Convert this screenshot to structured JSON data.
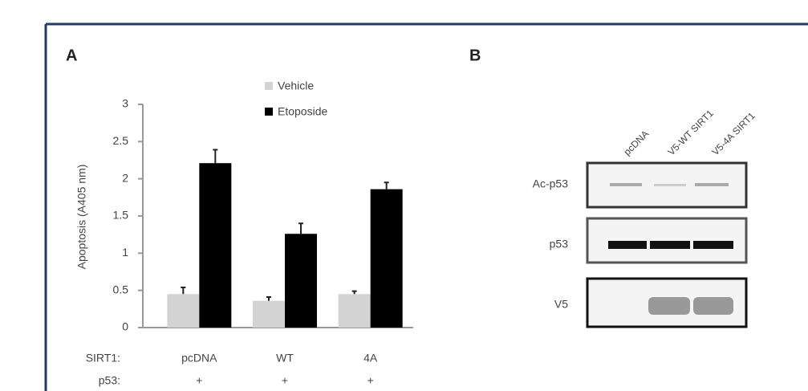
{
  "chart_data": {
    "type": "bar",
    "panel_label": "A",
    "y_label": "Apoptosis (A405 nm)",
    "categories": [
      "pcDNA",
      "WT",
      "4A"
    ],
    "series": [
      {
        "name": "Vehicle",
        "color": "#d3d3d3",
        "values": [
          0.45,
          0.36,
          0.45
        ],
        "errors": [
          0.09,
          0.05,
          0.04
        ]
      },
      {
        "name": "Etoposide",
        "color": "#000000",
        "values": [
          2.21,
          1.26,
          1.86
        ],
        "errors": [
          0.18,
          0.14,
          0.09
        ]
      }
    ],
    "ylim": [
      0,
      3
    ],
    "yticks": [
      0,
      0.5,
      1,
      1.5,
      2,
      2.5,
      3
    ],
    "rows": [
      {
        "label": "SIRT1:",
        "cells": [
          "pcDNA",
          "WT",
          "4A"
        ]
      },
      {
        "label": "p53:",
        "cells": [
          "+",
          "+",
          "+"
        ]
      }
    ]
  },
  "blot": {
    "panel_label": "B",
    "lanes": [
      "pcDNA",
      "V5-WT SIRT1",
      "V5-4A SIRT1"
    ],
    "rows": [
      "Ac-p53",
      "p53",
      "V5"
    ]
  }
}
